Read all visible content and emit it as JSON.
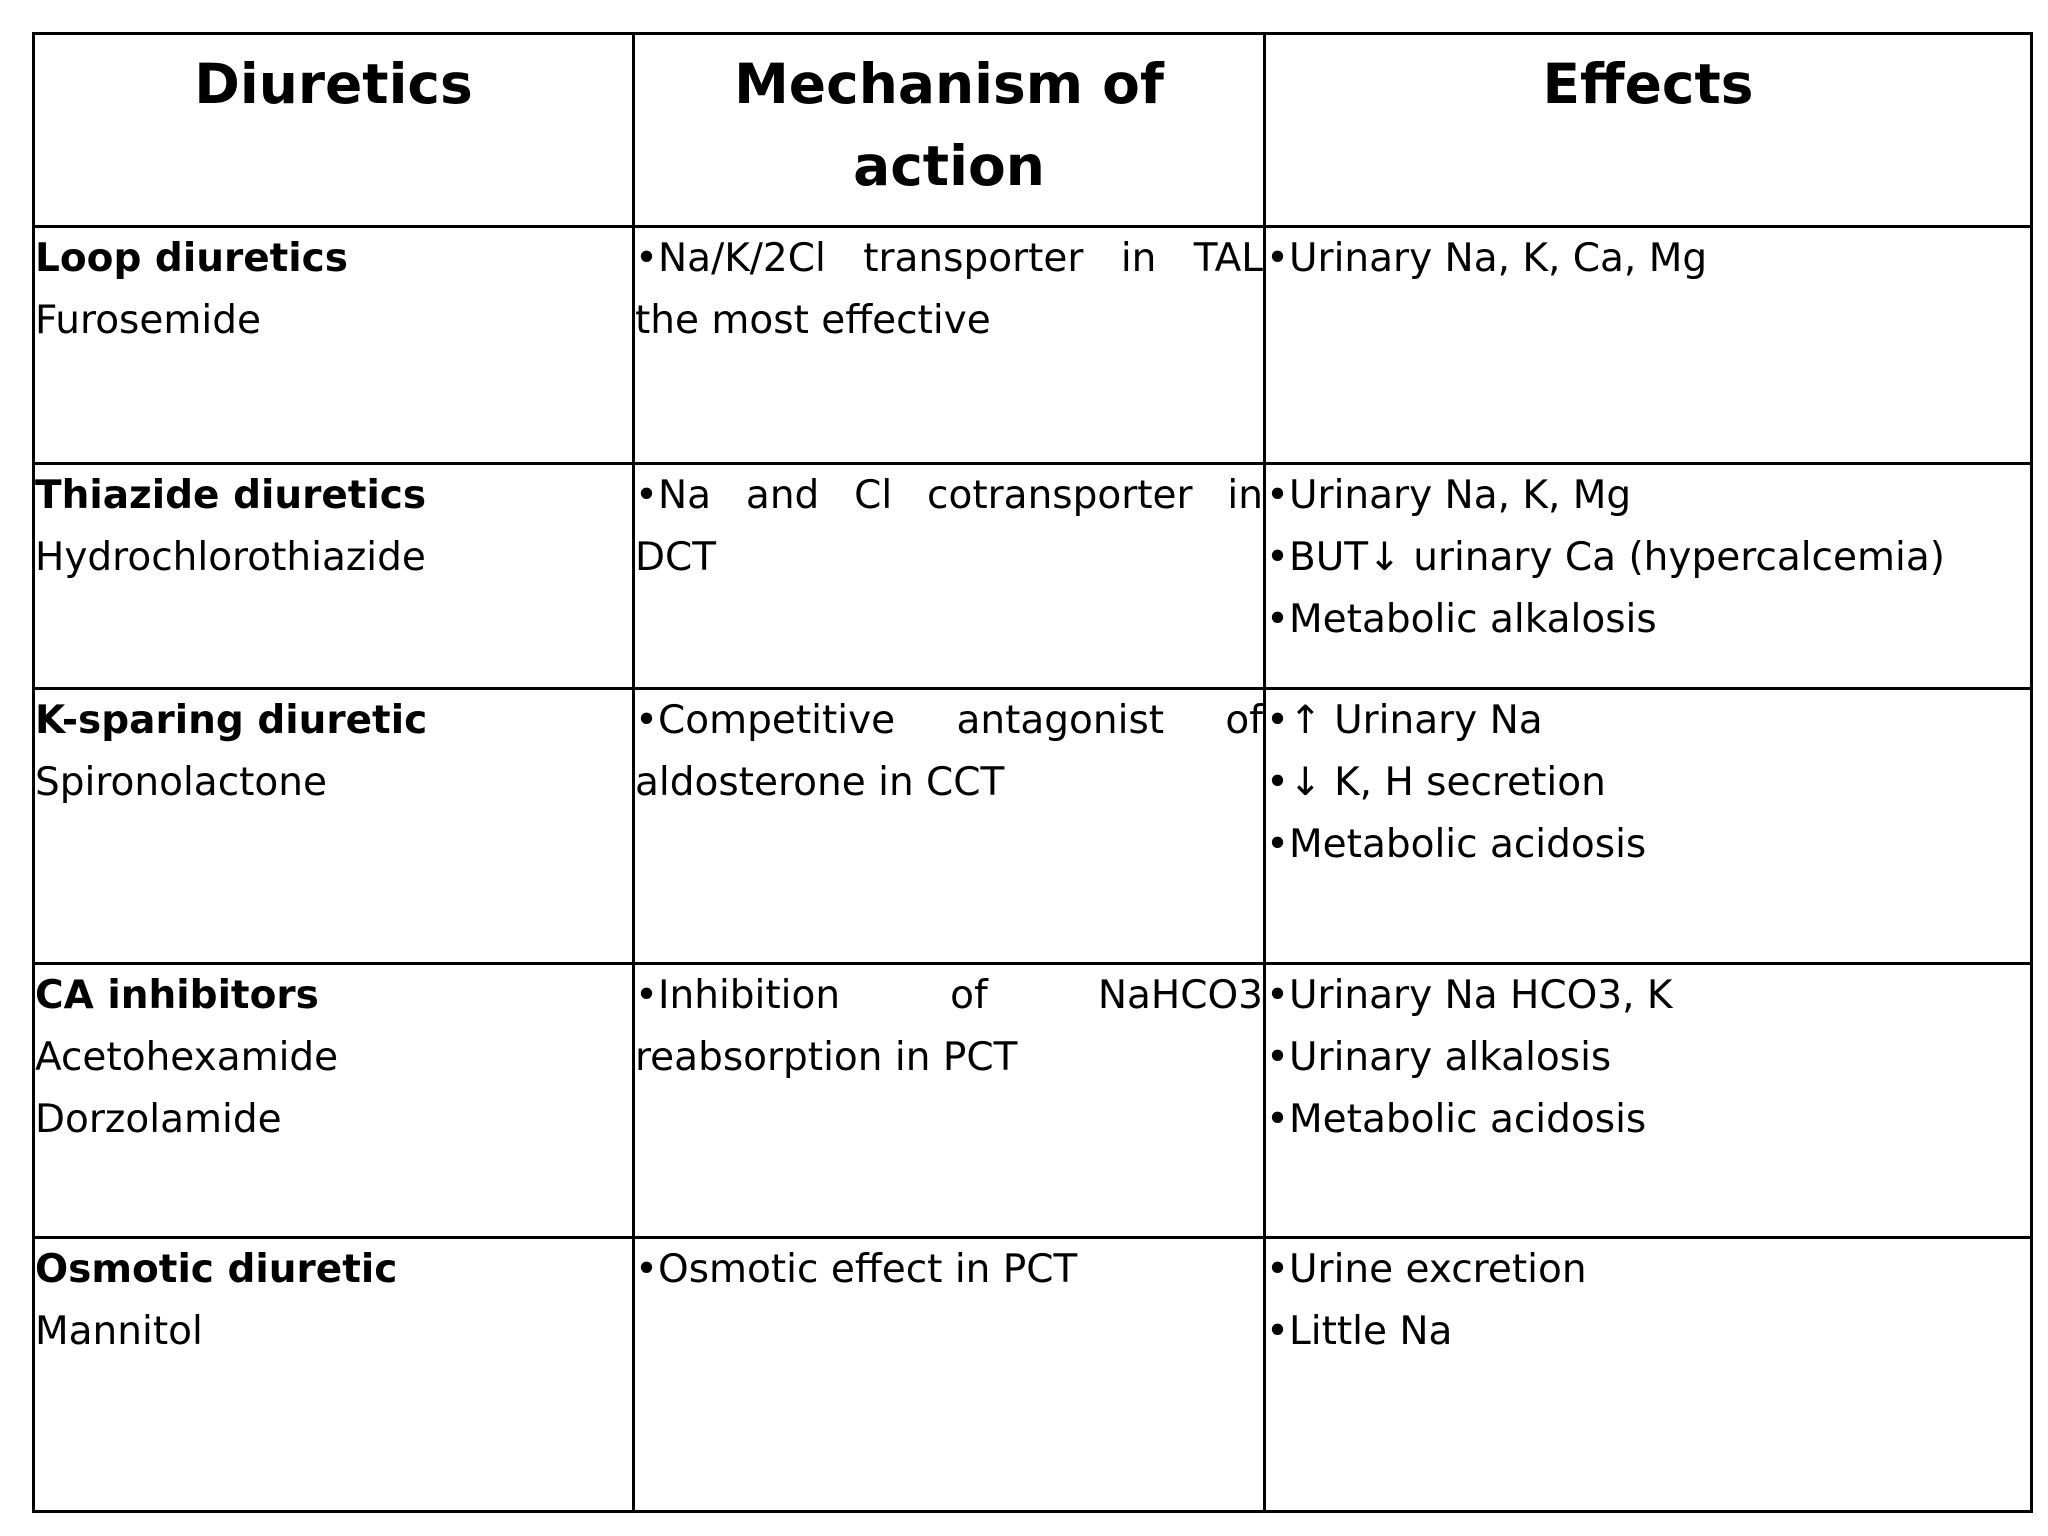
{
  "headers": {
    "diuretics": "Diuretics",
    "mechanism": "Mechanism of action",
    "effects": "Effects"
  },
  "rows": [
    {
      "name": "Loop diuretics",
      "drugs": [
        "Furosemide"
      ],
      "mechanism": "•Na/K/2Cl transporter in TAL the most effective",
      "effects": [
        "•Urinary Na, K, Ca, Mg"
      ]
    },
    {
      "name": "Thiazide diuretics",
      "drugs": [
        "Hydrochlorothiazide"
      ],
      "mechanism": "•Na and Cl cotransporter in DCT",
      "effects": [
        "•Urinary Na, K, Mg",
        "•BUT↓ urinary Ca (hypercalcemia)",
        "•Metabolic alkalosis"
      ]
    },
    {
      "name": "K-sparing diuretic",
      "drugs": [
        "Spironolactone"
      ],
      "mechanism": "•Competitive antagonist of aldosterone in CCT",
      "effects": [
        "•↑ Urinary Na",
        "•↓ K, H secretion",
        "•Metabolic acidosis"
      ]
    },
    {
      "name": "CA inhibitors",
      "drugs": [
        "Acetohexamide",
        "Dorzolamide"
      ],
      "mechanism": "•Inhibition of NaHCO3 reabsorption in PCT",
      "effects": [
        "•Urinary Na HCO3, K",
        "•Urinary alkalosis",
        "•Metabolic acidosis"
      ]
    },
    {
      "name": "Osmotic diuretic",
      "drugs": [
        "Mannitol"
      ],
      "mechanism": "•Osmotic effect in PCT",
      "effects": [
        "•Urine excretion",
        "•Little Na"
      ]
    }
  ]
}
